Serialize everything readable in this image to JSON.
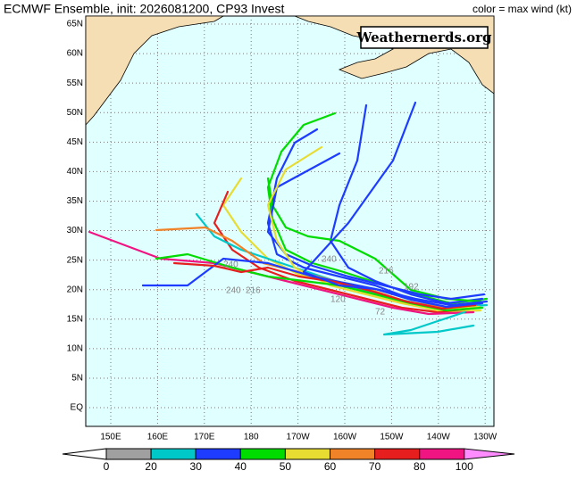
{
  "title": "ECMWF Ensemble, init: 2026081200, CP93 Invest",
  "legend_note": "color = max wind (kt)",
  "watermark": "Weathernerds.org",
  "lat_labels": [
    "65N",
    "60N",
    "55N",
    "50N",
    "45N",
    "40N",
    "35N",
    "30N",
    "25N",
    "20N",
    "15N",
    "10N",
    "5N",
    "EQ"
  ],
  "lon_labels": [
    "150E",
    "160E",
    "170E",
    "180",
    "170W",
    "160W",
    "150W",
    "140W",
    "130W"
  ],
  "colorbar": {
    "labels": [
      "0",
      "20",
      "30",
      "40",
      "50",
      "60",
      "70",
      "80",
      "100"
    ],
    "colors": [
      "#a0a0a0",
      "#00c8c8",
      "#1e3cff",
      "#00dc00",
      "#e6dc32",
      "#f08228",
      "#e61e1e",
      "#f01482"
    ],
    "below_color": "#ffffff",
    "above_color": "#ff8cff"
  },
  "track_labels": [
    "240",
    "216",
    "192",
    "240",
    "216",
    "240",
    "120",
    "72"
  ]
}
